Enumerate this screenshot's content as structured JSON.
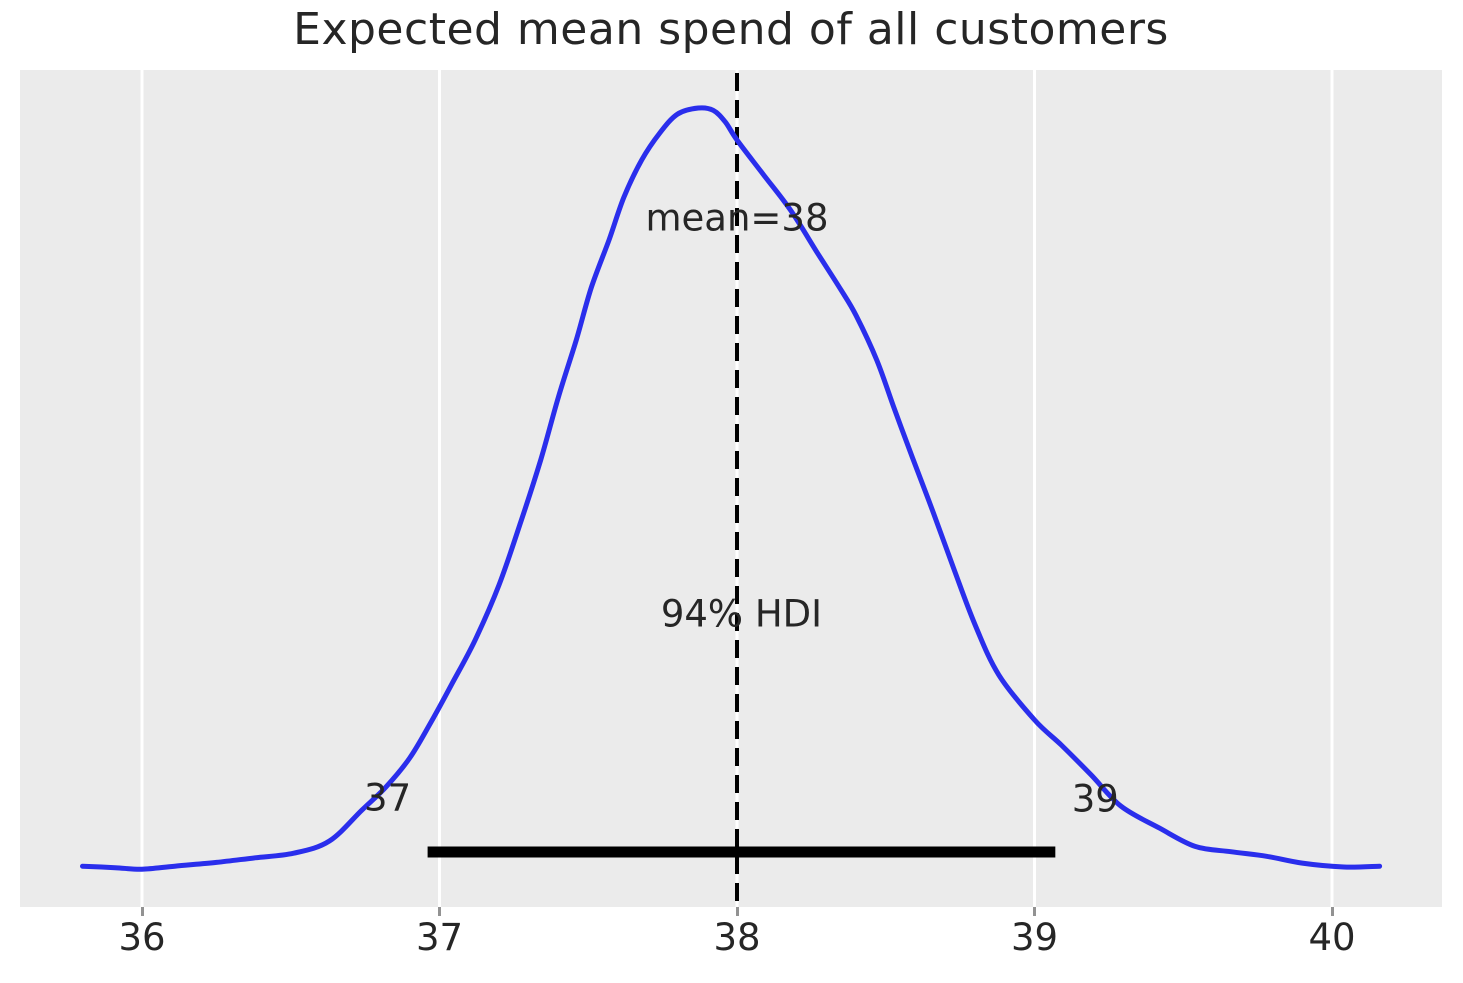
{
  "figure": {
    "title": "Expected mean spend of all customers"
  },
  "colors": {
    "figure_bg": "#ffffff",
    "plot_bg": "#ebebeb",
    "grid": "#ffffff",
    "curve": "#2a2eec",
    "mean_line": "#000000",
    "hdi_bar": "#000000",
    "text": "#262626",
    "tick_mark": "#929292"
  },
  "chart_data": {
    "type": "line",
    "subtype": "kde_posterior_density",
    "title": "Expected mean spend of all customers",
    "xlabel": "",
    "ylabel": "",
    "xlim": [
      35.59,
      40.38
    ],
    "ylim_relative_density": [
      0,
      1.1
    ],
    "grid": "vertical white gridlines on gray panel, no y axis",
    "legend": "none",
    "x_ticks": [
      {
        "label": "36",
        "value": 36
      },
      {
        "label": "37",
        "value": 37
      },
      {
        "label": "38",
        "value": 38
      },
      {
        "label": "39",
        "value": 39
      },
      {
        "label": "40",
        "value": 40
      }
    ],
    "mean": {
      "label": "mean=38",
      "value": 38
    },
    "hdi": {
      "label": "94% HDI",
      "probability": 0.94,
      "lower": 36.96,
      "upper": 39.07,
      "lower_label": "37",
      "upper_label": "39"
    },
    "series": [
      {
        "name": "posterior_kde",
        "color": "#2a2eec",
        "x": [
          35.8,
          35.91,
          36.0,
          36.11,
          36.25,
          36.38,
          36.51,
          36.63,
          36.74,
          36.82,
          36.9,
          36.97,
          37.04,
          37.12,
          37.2,
          37.27,
          37.34,
          37.4,
          37.46,
          37.51,
          37.57,
          37.62,
          37.68,
          37.74,
          37.8,
          37.87,
          37.92,
          37.96,
          38.0,
          38.09,
          38.18,
          38.27,
          38.35,
          38.4,
          38.47,
          38.53,
          38.59,
          38.66,
          38.73,
          38.8,
          38.88,
          39.0,
          39.09,
          39.19,
          39.29,
          39.42,
          39.54,
          39.66,
          39.78,
          39.9,
          40.04,
          40.16
        ],
        "density": [
          0.005,
          0.003,
          0.001,
          0.005,
          0.01,
          0.016,
          0.022,
          0.038,
          0.079,
          0.109,
          0.147,
          0.193,
          0.243,
          0.302,
          0.374,
          0.453,
          0.538,
          0.621,
          0.696,
          0.764,
          0.827,
          0.883,
          0.932,
          0.967,
          0.992,
          1.0,
          0.997,
          0.982,
          0.958,
          0.912,
          0.866,
          0.81,
          0.761,
          0.728,
          0.669,
          0.604,
          0.541,
          0.469,
          0.394,
          0.322,
          0.256,
          0.197,
          0.164,
          0.125,
          0.084,
          0.055,
          0.031,
          0.024,
          0.018,
          0.009,
          0.004,
          0.005
        ]
      }
    ]
  }
}
